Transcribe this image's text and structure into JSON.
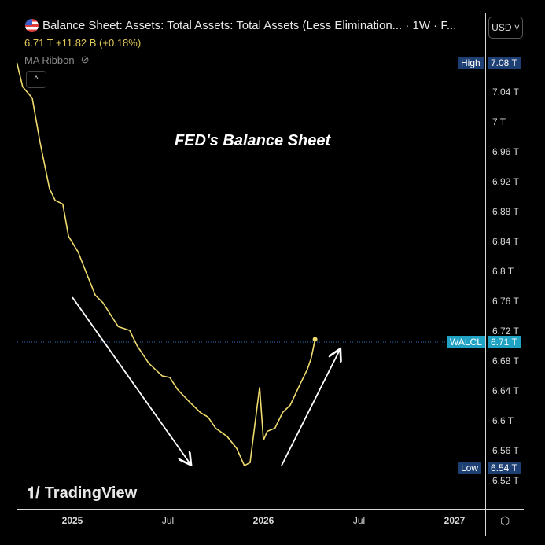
{
  "header": {
    "title": "Balance Sheet: Assets: Total Assets: Total Assets (Less Elimination... · 1W · F...",
    "price_line": "6.71 T  +11.82 B (+0.18%)",
    "indicator": "MA Ribbon",
    "currency": "USD ˅",
    "collapse": "^"
  },
  "annotation": "FED's Balance Sheet",
  "watermark": "TradingView",
  "tags": {
    "high_label": "High",
    "high_value": "7.08 T",
    "low_label": "Low",
    "low_value": "6.54 T",
    "last_label": "WALCL",
    "last_value": "6.71 T"
  },
  "colors": {
    "line": "#f0dc6e",
    "last": "#1fa2c4",
    "hilo": "#1e3f73"
  },
  "chart_data": {
    "type": "line",
    "title": "FED's Balance Sheet",
    "series": [
      {
        "name": "WALCL",
        "x": [
          2024.71,
          2024.74,
          2024.79,
          2024.83,
          2024.88,
          2024.91,
          2024.95,
          2024.98,
          2025.03,
          2025.07,
          2025.12,
          2025.16,
          2025.2,
          2025.24,
          2025.3,
          2025.34,
          2025.4,
          2025.47,
          2025.51,
          2025.55,
          2025.61,
          2025.67,
          2025.71,
          2025.75,
          2025.81,
          2025.86,
          2025.9,
          2025.93,
          2025.96,
          2025.98,
          2026.0,
          2026.02,
          2026.06,
          2026.1,
          2026.14,
          2026.19,
          2026.23,
          2026.25,
          2026.27
        ],
        "values": [
          7.08,
          7.048,
          7.033,
          6.975,
          6.912,
          6.896,
          6.891,
          6.848,
          6.827,
          6.801,
          6.769,
          6.759,
          6.743,
          6.727,
          6.722,
          6.701,
          6.678,
          6.661,
          6.659,
          6.643,
          6.627,
          6.612,
          6.606,
          6.591,
          6.58,
          6.564,
          6.541,
          6.545,
          6.606,
          6.646,
          6.575,
          6.587,
          6.591,
          6.612,
          6.622,
          6.649,
          6.67,
          6.685,
          6.71
        ]
      }
    ],
    "yticks": [
      "7.04 T",
      "7 T",
      "6.96 T",
      "6.92 T",
      "6.88 T",
      "6.84 T",
      "6.8 T",
      "6.76 T",
      "6.72 T",
      "6.68 T",
      "6.64 T",
      "6.6 T",
      "6.56 T",
      "6.52 T"
    ],
    "ytick_values": [
      7.04,
      7.0,
      6.96,
      6.92,
      6.88,
      6.84,
      6.8,
      6.76,
      6.72,
      6.68,
      6.64,
      6.6,
      6.56,
      6.52
    ],
    "xticks": [
      "2025",
      "Jul",
      "2026",
      "Jul",
      "2027"
    ],
    "xtick_values": [
      2025,
      2025.5,
      2026,
      2026.5,
      2027
    ],
    "xlim": [
      2024.71,
      2027.15
    ],
    "ylim": [
      6.505,
      7.105
    ]
  }
}
